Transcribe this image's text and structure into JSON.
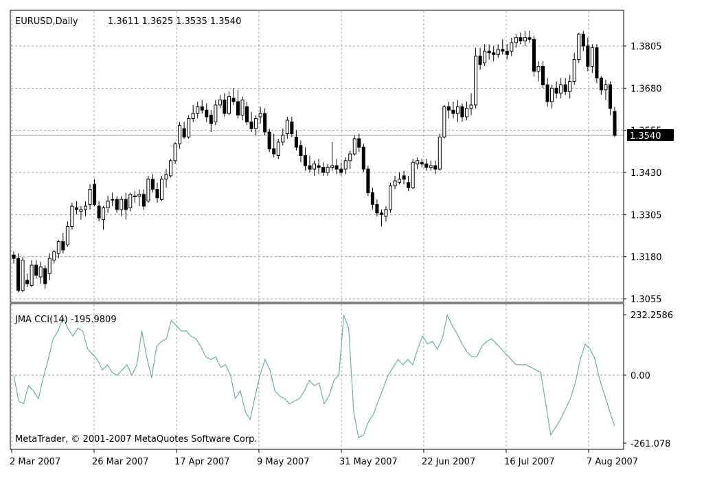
{
  "chart_data": [
    {
      "type": "candlestick",
      "title": "EURUSD,Daily",
      "ohlc_label": "1.3611 1.3625 1.3535 1.3540",
      "ylim": [
        1.3055,
        1.387
      ],
      "y_ticks": [
        "1.3805",
        "1.3680",
        "1.3555",
        "1.3430",
        "1.3305",
        "1.3180",
        "1.3055"
      ],
      "current_price": "1.3540",
      "x_tick_labels": [
        "2 Mar 2007",
        "26 Mar 2007",
        "17 Apr 2007",
        "9 May 2007",
        "31 May 2007",
        "22 Jun 2007",
        "16 Jul 2007",
        "7 Aug 2007"
      ],
      "grid": true,
      "candles": [
        [
          1.3185,
          1.3195,
          1.316,
          1.3175
        ],
        [
          1.3175,
          1.319,
          1.3075,
          1.308
        ],
        [
          1.308,
          1.318,
          1.3075,
          1.317
        ],
        [
          1.311,
          1.313,
          1.309,
          1.31
        ],
        [
          1.3095,
          1.317,
          1.309,
          1.3155
        ],
        [
          1.3155,
          1.317,
          1.3115,
          1.3125
        ],
        [
          1.312,
          1.3165,
          1.31,
          1.315
        ],
        [
          1.3145,
          1.3155,
          1.3085,
          1.31
        ],
        [
          1.313,
          1.319,
          1.311,
          1.3175
        ],
        [
          1.317,
          1.32,
          1.316,
          1.3195
        ],
        [
          1.319,
          1.323,
          1.3175,
          1.3225
        ],
        [
          1.3225,
          1.325,
          1.319,
          1.32
        ],
        [
          1.3215,
          1.3285,
          1.321,
          1.327
        ],
        [
          1.327,
          1.334,
          1.326,
          1.333
        ],
        [
          1.3325,
          1.3345,
          1.3305,
          1.332
        ],
        [
          1.3315,
          1.333,
          1.329,
          1.332
        ],
        [
          1.332,
          1.3345,
          1.33,
          1.333
        ],
        [
          1.3335,
          1.3395,
          1.332,
          1.338
        ],
        [
          1.3395,
          1.341,
          1.333,
          1.3335
        ],
        [
          1.333,
          1.3345,
          1.3285,
          1.3295
        ],
        [
          1.329,
          1.333,
          1.326,
          1.3325
        ],
        [
          1.3325,
          1.336,
          1.331,
          1.3345
        ],
        [
          1.335,
          1.337,
          1.333,
          1.335
        ],
        [
          1.335,
          1.336,
          1.331,
          1.332
        ],
        [
          1.332,
          1.336,
          1.33,
          1.335
        ],
        [
          1.335,
          1.337,
          1.329,
          1.332
        ],
        [
          1.3325,
          1.337,
          1.3315,
          1.3365
        ],
        [
          1.336,
          1.3375,
          1.334,
          1.336
        ],
        [
          1.336,
          1.338,
          1.333,
          1.3365
        ],
        [
          1.3365,
          1.338,
          1.332,
          1.333
        ],
        [
          1.3345,
          1.342,
          1.334,
          1.341
        ],
        [
          1.341,
          1.3425,
          1.337,
          1.338
        ],
        [
          1.338,
          1.34,
          1.334,
          1.3355
        ],
        [
          1.335,
          1.342,
          1.3345,
          1.341
        ],
        [
          1.341,
          1.344,
          1.3385,
          1.3425
        ],
        [
          1.342,
          1.347,
          1.3415,
          1.3465
        ],
        [
          1.3465,
          1.352,
          1.3455,
          1.3515
        ],
        [
          1.3515,
          1.358,
          1.35,
          1.357
        ],
        [
          1.356,
          1.358,
          1.353,
          1.3535
        ],
        [
          1.3535,
          1.36,
          1.353,
          1.359
        ],
        [
          1.359,
          1.363,
          1.358,
          1.3605
        ],
        [
          1.3605,
          1.364,
          1.359,
          1.3625
        ],
        [
          1.3625,
          1.3645,
          1.3605,
          1.3615
        ],
        [
          1.3615,
          1.3635,
          1.358,
          1.3595
        ],
        [
          1.36,
          1.3615,
          1.355,
          1.3575
        ],
        [
          1.358,
          1.3645,
          1.357,
          1.363
        ],
        [
          1.363,
          1.366,
          1.362,
          1.3645
        ],
        [
          1.3645,
          1.3665,
          1.3595,
          1.3605
        ],
        [
          1.3605,
          1.367,
          1.36,
          1.3655
        ],
        [
          1.365,
          1.368,
          1.363,
          1.364
        ],
        [
          1.364,
          1.3675,
          1.359,
          1.36
        ],
        [
          1.36,
          1.3655,
          1.3585,
          1.3645
        ],
        [
          1.3625,
          1.364,
          1.357,
          1.358
        ],
        [
          1.358,
          1.361,
          1.355,
          1.356
        ],
        [
          1.356,
          1.36,
          1.354,
          1.359
        ],
        [
          1.3595,
          1.3625,
          1.3575,
          1.3605
        ],
        [
          1.3605,
          1.362,
          1.354,
          1.355
        ],
        [
          1.355,
          1.356,
          1.349,
          1.35
        ],
        [
          1.35,
          1.3545,
          1.3475,
          1.3485
        ],
        [
          1.348,
          1.353,
          1.347,
          1.352
        ],
        [
          1.352,
          1.356,
          1.351,
          1.354
        ],
        [
          1.3545,
          1.3595,
          1.353,
          1.3585
        ],
        [
          1.358,
          1.3595,
          1.3535,
          1.3545
        ],
        [
          1.3535,
          1.3555,
          1.3495,
          1.3505
        ],
        [
          1.351,
          1.3525,
          1.346,
          1.348
        ],
        [
          1.348,
          1.3505,
          1.3435,
          1.345
        ],
        [
          1.345,
          1.348,
          1.343,
          1.344
        ],
        [
          1.344,
          1.3465,
          1.342,
          1.3455
        ],
        [
          1.345,
          1.347,
          1.3425,
          1.3445
        ],
        [
          1.3445,
          1.346,
          1.342,
          1.343
        ],
        [
          1.343,
          1.3455,
          1.342,
          1.3445
        ],
        [
          1.3445,
          1.352,
          1.3435,
          1.345
        ],
        [
          1.345,
          1.347,
          1.3425,
          1.344
        ],
        [
          1.344,
          1.346,
          1.342,
          1.343
        ],
        [
          1.344,
          1.3475,
          1.3425,
          1.3465
        ],
        [
          1.3465,
          1.3495,
          1.344,
          1.3485
        ],
        [
          1.3485,
          1.354,
          1.348,
          1.353
        ],
        [
          1.353,
          1.3545,
          1.349,
          1.3505
        ],
        [
          1.3505,
          1.3515,
          1.343,
          1.344
        ],
        [
          1.344,
          1.345,
          1.336,
          1.337
        ],
        [
          1.337,
          1.3385,
          1.332,
          1.3335
        ],
        [
          1.3335,
          1.335,
          1.33,
          1.331
        ],
        [
          1.331,
          1.332,
          1.327,
          1.3305
        ],
        [
          1.33,
          1.333,
          1.3285,
          1.332
        ],
        [
          1.332,
          1.34,
          1.331,
          1.339
        ],
        [
          1.339,
          1.342,
          1.338,
          1.3405
        ],
        [
          1.34,
          1.343,
          1.3395,
          1.341
        ],
        [
          1.342,
          1.3435,
          1.3395,
          1.341
        ],
        [
          1.34,
          1.342,
          1.3375,
          1.3385
        ],
        [
          1.3385,
          1.347,
          1.338,
          1.346
        ],
        [
          1.3455,
          1.3475,
          1.344,
          1.3465
        ],
        [
          1.346,
          1.347,
          1.3445,
          1.3455
        ],
        [
          1.3455,
          1.347,
          1.3435,
          1.3445
        ],
        [
          1.3445,
          1.3465,
          1.3435,
          1.345
        ],
        [
          1.345,
          1.3465,
          1.3425,
          1.344
        ],
        [
          1.344,
          1.3545,
          1.3435,
          1.3535
        ],
        [
          1.3535,
          1.363,
          1.353,
          1.3625
        ],
        [
          1.3625,
          1.364,
          1.359,
          1.3615
        ],
        [
          1.3615,
          1.364,
          1.359,
          1.3605
        ],
        [
          1.3605,
          1.3645,
          1.358,
          1.3625
        ],
        [
          1.3625,
          1.3635,
          1.358,
          1.3595
        ],
        [
          1.3595,
          1.364,
          1.3585,
          1.362
        ],
        [
          1.362,
          1.3665,
          1.36,
          1.363
        ],
        [
          1.363,
          1.38,
          1.362,
          1.3775
        ],
        [
          1.3775,
          1.38,
          1.3735,
          1.375
        ],
        [
          1.3755,
          1.381,
          1.3745,
          1.379
        ],
        [
          1.379,
          1.381,
          1.3765,
          1.3785
        ],
        [
          1.3785,
          1.3805,
          1.376,
          1.378
        ],
        [
          1.378,
          1.381,
          1.377,
          1.3795
        ],
        [
          1.3795,
          1.3825,
          1.378,
          1.379
        ],
        [
          1.379,
          1.381,
          1.3765,
          1.378
        ],
        [
          1.379,
          1.383,
          1.3775,
          1.3815
        ],
        [
          1.3815,
          1.384,
          1.38,
          1.383
        ],
        [
          1.383,
          1.3845,
          1.381,
          1.382
        ],
        [
          1.382,
          1.385,
          1.3805,
          1.383
        ],
        [
          1.383,
          1.385,
          1.3815,
          1.3825
        ],
        [
          1.3825,
          1.3835,
          1.3715,
          1.373
        ],
        [
          1.373,
          1.376,
          1.37,
          1.3745
        ],
        [
          1.3745,
          1.376,
          1.368,
          1.369
        ],
        [
          1.369,
          1.371,
          1.3625,
          1.364
        ],
        [
          1.364,
          1.369,
          1.362,
          1.368
        ],
        [
          1.368,
          1.37,
          1.365,
          1.3665
        ],
        [
          1.3665,
          1.371,
          1.365,
          1.369
        ],
        [
          1.369,
          1.371,
          1.366,
          1.367
        ],
        [
          1.367,
          1.372,
          1.365,
          1.37
        ],
        [
          1.37,
          1.3785,
          1.369,
          1.3765
        ],
        [
          1.3765,
          1.3845,
          1.3755,
          1.384
        ],
        [
          1.384,
          1.385,
          1.379,
          1.3805
        ],
        [
          1.3805,
          1.383,
          1.373,
          1.3745
        ],
        [
          1.3745,
          1.381,
          1.3725,
          1.38
        ],
        [
          1.38,
          1.381,
          1.3695,
          1.371
        ],
        [
          1.371,
          1.3715,
          1.366,
          1.3675
        ],
        [
          1.3675,
          1.3705,
          1.3645,
          1.369
        ],
        [
          1.369,
          1.37,
          1.36,
          1.362
        ],
        [
          1.3611,
          1.3625,
          1.3535,
          1.354
        ]
      ]
    },
    {
      "type": "line",
      "title": "JMA CCI(14) -195.9809",
      "y_ticks": [
        "232.2586",
        "0.00",
        "-261.078"
      ],
      "ylim": [
        -261.078,
        232.2586
      ],
      "color": "#5fb3ab",
      "values": [
        0,
        -100,
        -110,
        -40,
        -60,
        -90,
        -10,
        60,
        140,
        170,
        220,
        180,
        150,
        180,
        170,
        100,
        80,
        60,
        20,
        40,
        10,
        0,
        20,
        40,
        0,
        40,
        170,
        70,
        -10,
        110,
        130,
        140,
        210,
        190,
        170,
        170,
        150,
        140,
        110,
        70,
        60,
        70,
        30,
        40,
        0,
        -90,
        -60,
        -140,
        -170,
        -80,
        0,
        60,
        20,
        -60,
        -80,
        -90,
        -110,
        -100,
        -90,
        -60,
        -20,
        -40,
        -30,
        -110,
        -80,
        -20,
        0,
        230,
        180,
        -140,
        -240,
        -230,
        -180,
        -150,
        -100,
        -50,
        0,
        30,
        60,
        40,
        60,
        40,
        100,
        150,
        120,
        130,
        100,
        140,
        230,
        190,
        160,
        120,
        90,
        70,
        70,
        110,
        130,
        140,
        120,
        100,
        80,
        60,
        40,
        40,
        40,
        30,
        20,
        10,
        -110,
        -230,
        -200,
        -170,
        -130,
        -90,
        -30,
        60,
        120,
        100,
        60,
        -20,
        -80,
        -140,
        -195
      ]
    }
  ],
  "watermark": "MetaTrader, © 2001-2007 MetaQuotes Software Corp.",
  "colors": {
    "border": "#000000",
    "grid": "#a0a0a0",
    "bull_body": "#ffffff",
    "bear_body": "#000000",
    "cci_line": "#5fb3ab",
    "price_line": "#a0a0a0",
    "price_tag_bg": "#000000",
    "price_tag_text": "#ffffff"
  }
}
